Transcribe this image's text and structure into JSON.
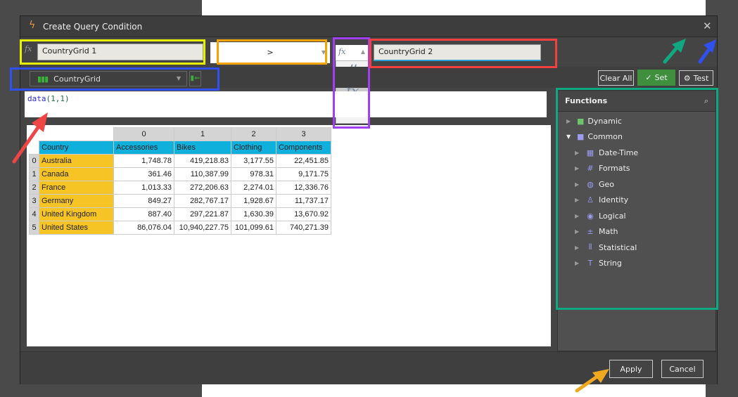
{
  "dialog": {
    "title": "Create Query Condition"
  },
  "condition": {
    "left_value": "CountryGrid 1",
    "operator": ">",
    "right_type_options": [
      "#",
      "fx",
      "time-number"
    ],
    "right_value": "CountryGrid 2"
  },
  "source": {
    "selected": "CountryGrid"
  },
  "toolbar": {
    "clear_all": "Clear All",
    "set": "Set",
    "test": "Test"
  },
  "editor": {
    "func": "data",
    "args": "(1,1)"
  },
  "grid": {
    "col_indices": [
      "0",
      "1",
      "2",
      "3"
    ],
    "header": [
      "Country",
      "Accessories",
      "Bikes",
      "Clothing",
      "Components"
    ],
    "rows": [
      {
        "i": "0",
        "c": "Australia",
        "v": [
          "1,748.78",
          "419,218.83",
          "3,177.55",
          "22,451.85"
        ]
      },
      {
        "i": "1",
        "c": "Canada",
        "v": [
          "361.46",
          "110,387.99",
          "978.31",
          "9,171.75"
        ]
      },
      {
        "i": "2",
        "c": "France",
        "v": [
          "1,013.33",
          "272,206.63",
          "2,274.01",
          "12,336.76"
        ]
      },
      {
        "i": "3",
        "c": "Germany",
        "v": [
          "849.27",
          "282,767.17",
          "1,928.67",
          "11,737.17"
        ]
      },
      {
        "i": "4",
        "c": "United Kingdom",
        "v": [
          "887.40",
          "297,221.87",
          "1,630.39",
          "13,670.92"
        ]
      },
      {
        "i": "5",
        "c": "United States",
        "v": [
          "86,076.04",
          "10,940,227.75",
          "101,099.61",
          "740,271.39"
        ]
      }
    ]
  },
  "functions": {
    "title": "Functions",
    "folders": [
      {
        "label": "Dynamic"
      },
      {
        "label": "Common"
      }
    ],
    "items": [
      {
        "label": "Date-Time",
        "icon": "calendar-grid"
      },
      {
        "label": "Formats",
        "icon": "#fx"
      },
      {
        "label": "Geo",
        "icon": "globe"
      },
      {
        "label": "Identity",
        "icon": "person"
      },
      {
        "label": "Logical",
        "icon": "radio"
      },
      {
        "label": "Math",
        "icon": "plus-minus"
      },
      {
        "label": "Statistical",
        "icon": "bars"
      },
      {
        "label": "String",
        "icon": "T"
      }
    ]
  },
  "footer": {
    "apply": "Apply",
    "cancel": "Cancel"
  },
  "colors": {
    "set_button": "#3f8f3f",
    "col_header": "#0fb0dc",
    "row_header": "#f6c525"
  }
}
